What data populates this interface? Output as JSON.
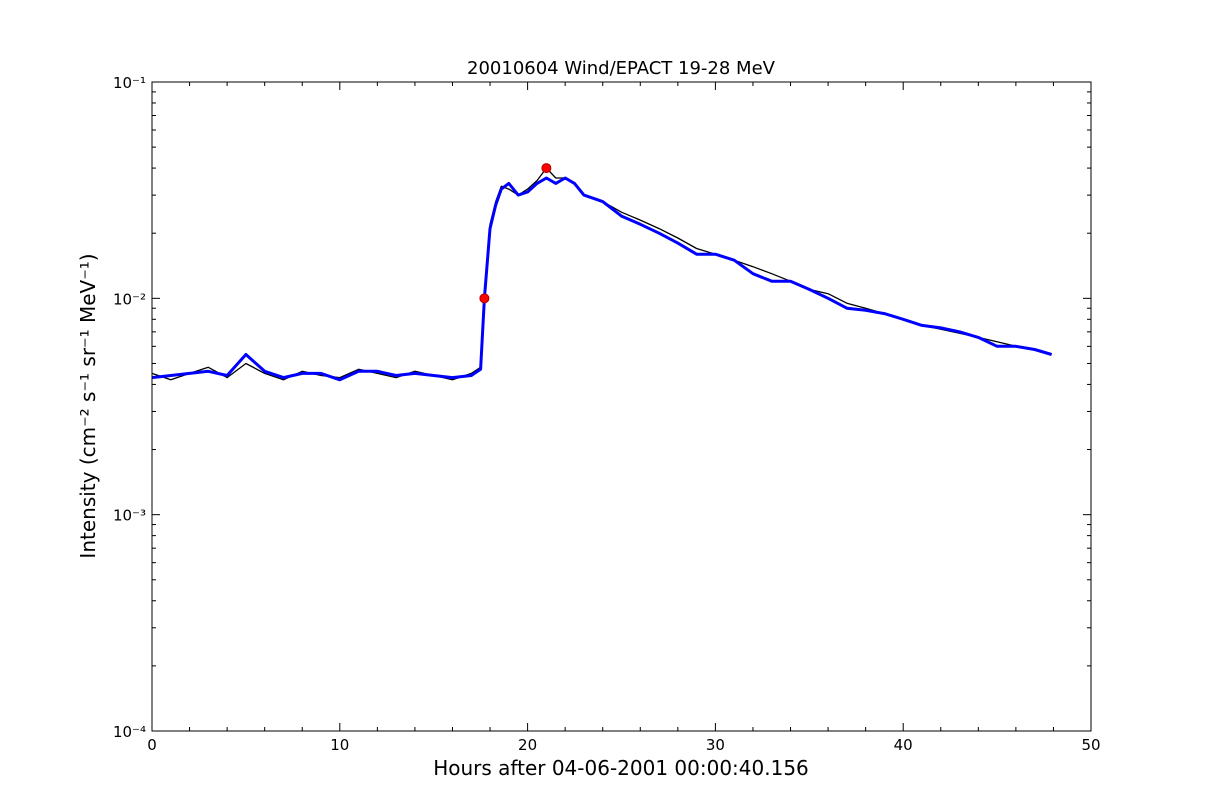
{
  "chart_data": {
    "type": "line",
    "title": "20010604 Wind/EPACT 19-28 MeV",
    "xlabel": "Hours after 04-06-2001 00:00:40.156",
    "ylabel": "Intensity (cm⁻² s⁻¹ sr⁻¹ MeV⁻¹)",
    "xlim": [
      0,
      50
    ],
    "ylim": [
      0.0001,
      0.1
    ],
    "yscale": "log",
    "grid": false,
    "xticks": [
      "0",
      "10",
      "20",
      "30",
      "40",
      "50"
    ],
    "yticks": [
      "10⁻⁴",
      "10⁻³",
      "10⁻²",
      "10⁻¹"
    ],
    "colors": {
      "raw": "#000000",
      "smoothed": "#0000ff",
      "markers": "#ff0000"
    },
    "series": [
      {
        "role": "raw",
        "x": [
          0,
          1,
          2,
          3,
          4,
          5,
          6,
          7,
          8,
          9,
          10,
          11,
          12,
          13,
          14,
          15,
          16,
          17,
          17.5,
          17.7,
          18.0,
          18.3,
          18.6,
          19.0,
          19.5,
          20,
          20.5,
          21,
          21.5,
          22,
          22.5,
          23,
          24,
          25,
          26,
          27,
          28,
          29,
          30,
          31,
          32,
          33,
          34,
          35,
          36,
          37,
          38,
          39,
          40,
          41,
          42,
          43,
          44,
          45,
          46,
          47,
          47.9
        ],
        "y": [
          0.0045,
          0.0042,
          0.0045,
          0.0048,
          0.0043,
          0.005,
          0.0045,
          0.0042,
          0.0046,
          0.0044,
          0.0043,
          0.0047,
          0.0045,
          0.0043,
          0.0046,
          0.0044,
          0.0042,
          0.0045,
          0.0048,
          0.01,
          0.022,
          0.028,
          0.033,
          0.032,
          0.03,
          0.032,
          0.035,
          0.04,
          0.036,
          0.036,
          0.034,
          0.03,
          0.028,
          0.025,
          0.023,
          0.021,
          0.019,
          0.017,
          0.016,
          0.015,
          0.014,
          0.013,
          0.012,
          0.011,
          0.0105,
          0.0095,
          0.009,
          0.0085,
          0.008,
          0.0075,
          0.0072,
          0.0069,
          0.0066,
          0.0063,
          0.006,
          0.0058,
          0.0055
        ]
      },
      {
        "role": "smoothed",
        "x": [
          0,
          1,
          2,
          3,
          4,
          5,
          6,
          7,
          8,
          9,
          10,
          11,
          12,
          13,
          14,
          15,
          16,
          17,
          17.5,
          17.7,
          18.0,
          18.3,
          18.6,
          19.0,
          19.5,
          20,
          20.5,
          21,
          21.5,
          22,
          22.5,
          23,
          24,
          25,
          26,
          27,
          28,
          29,
          30,
          31,
          32,
          33,
          34,
          35,
          36,
          37,
          38,
          39,
          40,
          41,
          42,
          43,
          44,
          45,
          46,
          47,
          47.9
        ],
        "y": [
          0.0043,
          0.0044,
          0.0045,
          0.0046,
          0.0044,
          0.0055,
          0.0046,
          0.0043,
          0.0045,
          0.0045,
          0.0042,
          0.0046,
          0.0046,
          0.0044,
          0.0045,
          0.0044,
          0.0043,
          0.0044,
          0.0047,
          0.01,
          0.021,
          0.027,
          0.032,
          0.034,
          0.03,
          0.031,
          0.034,
          0.036,
          0.034,
          0.036,
          0.034,
          0.03,
          0.028,
          0.024,
          0.022,
          0.02,
          0.018,
          0.016,
          0.016,
          0.015,
          0.013,
          0.012,
          0.012,
          0.011,
          0.01,
          0.009,
          0.0088,
          0.0085,
          0.008,
          0.0075,
          0.0073,
          0.007,
          0.0066,
          0.006,
          0.006,
          0.0058,
          0.0055
        ]
      }
    ],
    "markers": [
      {
        "x": 17.7,
        "y": 0.01
      },
      {
        "x": 21.0,
        "y": 0.04
      }
    ]
  }
}
